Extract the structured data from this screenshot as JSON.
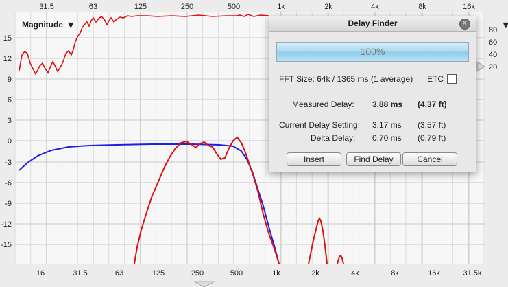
{
  "graph": {
    "magnitude_label": "Magnitude",
    "magnitude_arrow": "▼",
    "top_freq_labels": [
      "31.5",
      "63",
      "125",
      "250",
      "500",
      "1k",
      "2k",
      "4k",
      "8k",
      "16k"
    ],
    "bottom_freq_labels": [
      "16",
      "31.5",
      "63",
      "125",
      "250",
      "500",
      "1k",
      "2k",
      "4k",
      "8k",
      "16k",
      "31.5k"
    ],
    "y_labels": [
      "15",
      "12",
      "9",
      "6",
      "3",
      "0",
      "-3",
      "-6",
      "-9",
      "-12",
      "-15"
    ],
    "right_scale_labels": [
      "80",
      "60",
      "40",
      "20"
    ],
    "colors": {
      "red_trace": "#dd1010",
      "blue_trace": "#1f1fe0",
      "grid": "#c9c9c9",
      "plot_bg": "#f7f7f7"
    }
  },
  "delay_finder": {
    "title": "Delay Finder",
    "close_icon": "close-icon",
    "progress_value": 1.0,
    "progress_text": "100%",
    "fft_size": "FFT Size: 64k / 1365 ms (1 average)",
    "etc_label": "ETC",
    "etc_checked": false,
    "measured_label": "Measured Delay:",
    "measured_ms": "3.88 ms",
    "measured_ft": "(4.37 ft)",
    "current_label": "Current Delay Setting:",
    "current_ms": "3.17 ms",
    "current_ft": "(3.57 ft)",
    "delta_label": "Delta Delay:",
    "delta_ms": "0.70 ms",
    "delta_ft": "(0.79 ft)",
    "insert_button": "Insert",
    "find_delay_button": "Find Delay",
    "cancel_button": "Cancel"
  }
}
